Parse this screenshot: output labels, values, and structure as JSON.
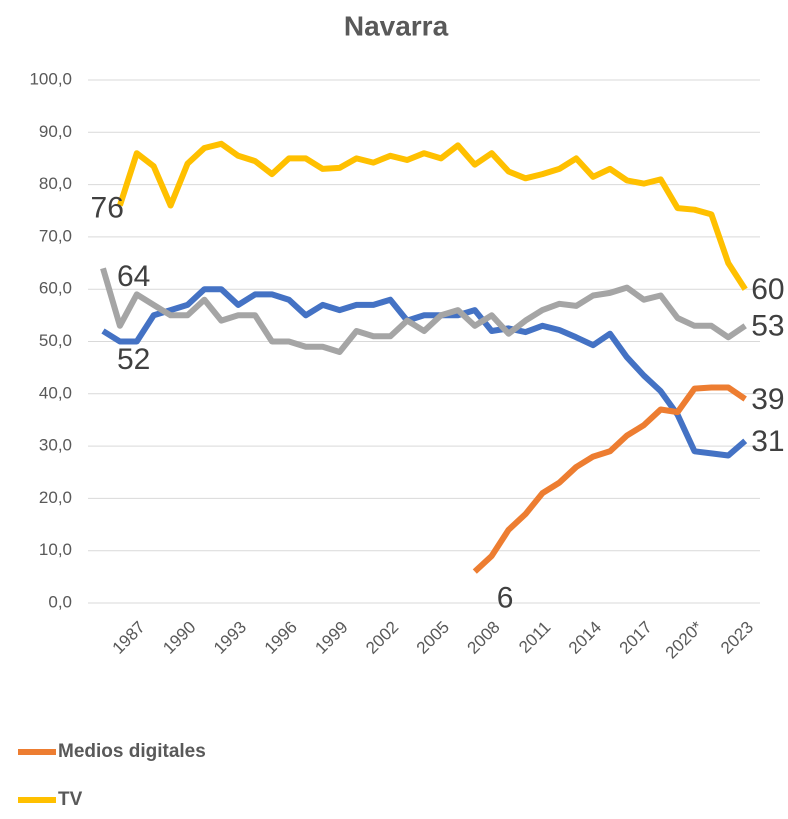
{
  "chart_data": {
    "type": "line",
    "title": "Navarra",
    "categories": [
      null,
      null,
      "1987",
      null,
      null,
      "1990",
      null,
      null,
      "1993",
      null,
      null,
      "1996",
      null,
      null,
      "1999",
      null,
      null,
      "2002",
      null,
      null,
      "2005",
      null,
      null,
      "2008",
      null,
      null,
      "2011",
      null,
      null,
      "2014",
      null,
      null,
      "2017",
      null,
      null,
      "2020*",
      null,
      null,
      "2023"
    ],
    "ylim": [
      0,
      100
    ],
    "yticks": [
      {
        "value": 0,
        "label": "0,0"
      },
      {
        "value": 10,
        "label": "10,0"
      },
      {
        "value": 20,
        "label": "20,0"
      },
      {
        "value": 30,
        "label": "30,0"
      },
      {
        "value": 40,
        "label": "40,0"
      },
      {
        "value": 50,
        "label": "50,0"
      },
      {
        "value": 60,
        "label": "60,0"
      },
      {
        "value": 70,
        "label": "70,0"
      },
      {
        "value": 80,
        "label": "80,0"
      },
      {
        "value": 90,
        "label": "90,0"
      },
      {
        "value": 100,
        "label": "100,0"
      }
    ],
    "grid": true,
    "legend": "bottom-left",
    "series": [
      {
        "color": "#4472C4",
        "values": [
          52,
          50,
          50,
          55,
          56,
          57,
          60,
          60,
          57,
          59,
          59,
          58,
          55,
          57,
          56,
          57,
          57,
          58,
          54,
          55,
          55,
          55,
          56,
          52,
          52.5,
          51.8,
          53,
          52.2,
          50.8,
          49.3,
          51.5,
          47,
          43.5,
          40.5,
          36,
          29,
          28.6,
          28.2,
          31
        ],
        "value_labels": [
          "52",
          null,
          null,
          null,
          null,
          null,
          null,
          null,
          null,
          null,
          null,
          null,
          null,
          null,
          null,
          null,
          null,
          null,
          null,
          null,
          null,
          null,
          null,
          null,
          null,
          null,
          null,
          null,
          null,
          null,
          null,
          null,
          null,
          null,
          null,
          null,
          null,
          null,
          "31"
        ]
      },
      {
        "color": "#A5A5A5",
        "values": [
          64,
          53,
          59,
          57,
          55,
          55,
          58,
          54,
          55,
          55,
          50,
          50,
          49,
          49,
          48,
          52,
          51,
          51,
          54,
          52,
          55,
          56,
          53,
          55,
          51.5,
          54,
          56,
          57.2,
          56.8,
          58.8,
          59.3,
          60.3,
          58,
          58.8,
          54.5,
          53,
          53,
          50.8,
          53
        ],
        "value_labels": [
          "64",
          null,
          null,
          null,
          null,
          null,
          null,
          null,
          null,
          null,
          null,
          null,
          null,
          null,
          null,
          null,
          null,
          null,
          null,
          null,
          null,
          null,
          null,
          null,
          null,
          null,
          null,
          null,
          null,
          null,
          null,
          null,
          null,
          null,
          null,
          null,
          null,
          null,
          "53"
        ]
      },
      {
        "name": "Medios digitales",
        "color": "#ED7D31",
        "values": [
          null,
          null,
          null,
          null,
          null,
          null,
          null,
          null,
          null,
          null,
          null,
          null,
          null,
          null,
          null,
          null,
          null,
          null,
          null,
          null,
          null,
          null,
          6,
          9,
          14,
          17,
          21,
          23,
          26,
          28,
          29,
          32,
          34,
          37,
          36.5,
          41,
          41.2,
          41.2,
          39
        ],
        "value_labels": [
          null,
          null,
          null,
          null,
          null,
          null,
          null,
          null,
          null,
          null,
          null,
          null,
          null,
          null,
          null,
          null,
          null,
          null,
          null,
          null,
          null,
          null,
          "6",
          null,
          null,
          null,
          null,
          null,
          null,
          null,
          null,
          null,
          null,
          null,
          null,
          null,
          null,
          null,
          "39"
        ]
      },
      {
        "name": "TV",
        "color": "#FFC000",
        "values": [
          null,
          76,
          86,
          83.5,
          76,
          84,
          87,
          87.8,
          85.5,
          84.5,
          82,
          85,
          85,
          83,
          83.2,
          85,
          84.2,
          85.5,
          84.7,
          86,
          85,
          87.5,
          83.8,
          86,
          82.5,
          81.2,
          82,
          83,
          85,
          81.5,
          83,
          80.8,
          80.2,
          81,
          75.5,
          75.2,
          74.3,
          65,
          60
        ],
        "value_labels": [
          null,
          "76",
          null,
          null,
          null,
          null,
          null,
          null,
          null,
          null,
          null,
          null,
          null,
          null,
          null,
          null,
          null,
          null,
          null,
          null,
          null,
          null,
          null,
          null,
          null,
          null,
          null,
          null,
          null,
          null,
          null,
          null,
          null,
          null,
          null,
          null,
          null,
          null,
          "60"
        ]
      }
    ]
  }
}
